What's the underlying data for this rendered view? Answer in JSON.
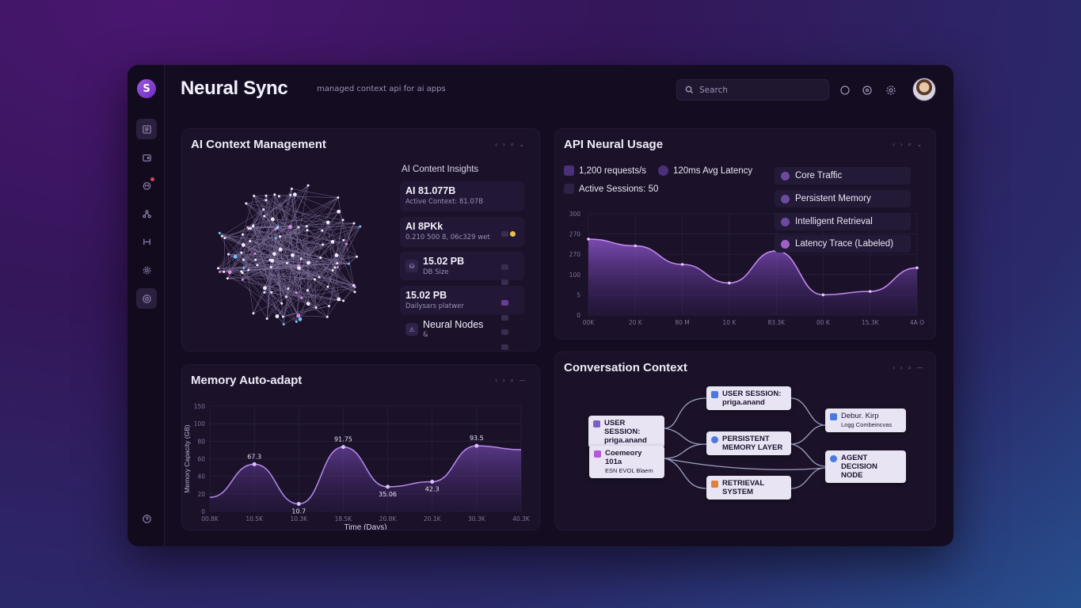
{
  "app": {
    "title": "Neural Sync",
    "subtitle": "managed context api for ai apps",
    "logo_letter": "S"
  },
  "header": {
    "search_placeholder": "Search"
  },
  "sidebar": {
    "items": [
      "doc-icon",
      "wallet-icon",
      "bot-icon",
      "network-icon",
      "flow-icon",
      "gear-icon",
      "target-icon"
    ],
    "footer_icon": "help-icon"
  },
  "context_panel": {
    "title": "AI Context Management",
    "controls": "‹ › ⌕ ⌄",
    "insights_title": "AI Content Insights",
    "cards": [
      {
        "value": "AI 81.077B",
        "sub": "Active Context: 81.07B"
      },
      {
        "value": "AI 8PKk",
        "sub": "0.210 500 8, 06c329 wet"
      },
      {
        "value": "15.02 PB",
        "sub": "DB Size"
      },
      {
        "value": "15.02 PB",
        "sub": "Dailysars platwer"
      },
      {
        "value": "Neural Nodes",
        "sub": "&"
      }
    ]
  },
  "usage_panel": {
    "title": "API Neural Usage",
    "controls": "‹ › ⌕ ⌄",
    "stats": [
      {
        "label": "1,200 requests/s"
      },
      {
        "label": "120ms Avg Latency"
      },
      {
        "label": "Active Sessions: 50"
      }
    ],
    "legend": [
      {
        "label": "Core Traffic",
        "color": "#6c4aa0"
      },
      {
        "label": "Persistent Memory",
        "color": "#6c4aa0"
      },
      {
        "label": "Intelligent Retrieval",
        "color": "#6c4aa0"
      },
      {
        "label": "Latency Trace (Labeled)",
        "color": "#a060c8"
      }
    ],
    "y_ticks": [
      "300",
      "270",
      "270",
      "100",
      "5",
      "0"
    ],
    "x_ticks": [
      "00K",
      "20 K",
      "80 M",
      "10 K",
      "83.3K",
      "00 K",
      "15.3K",
      "4A O"
    ]
  },
  "memory_panel": {
    "title": "Memory Auto-adapt",
    "controls": "‹ › ⌕ —",
    "ylabel": "Memory Capacity (GB)",
    "xlabel": "Time (Days)",
    "y_ticks": [
      "150",
      "100",
      "80",
      "60",
      "40",
      "20",
      "0"
    ],
    "x_ticks": [
      "00.8K",
      "10.5K",
      "10.3K",
      "18.5K",
      "20.8K",
      "20.1K",
      "30.3K",
      "40.3K"
    ]
  },
  "conversation_panel": {
    "title": "Conversation Context",
    "controls": "‹ › ⌕ —",
    "nodes": [
      {
        "line1": "USER SESSION:",
        "line2": "priga.anand",
        "color": "#7b5fc2"
      },
      {
        "line1": "Coemeory 101a",
        "line2": "ESN EVOL Blaem",
        "color": "#b45ad8"
      },
      {
        "line1": "USER SESSION:",
        "line2": "priga.anand",
        "color": "#4a7ae0"
      },
      {
        "line1": "PERSISTENT",
        "line2": "MEMORY LAYER",
        "color": "#4a7ae0"
      },
      {
        "line1": "RETRIEVAL",
        "line2": "SYSTEM",
        "color": "#e0803a"
      },
      {
        "line1": "Debur. Kirp",
        "line2": "Logg Combeincvas",
        "color": "#4a7ae0"
      },
      {
        "line1": "AGENT DECISION",
        "line2": "NODE",
        "color": "#4a7ae0"
      }
    ]
  },
  "chart_data": [
    {
      "type": "area",
      "title": "API Neural Usage",
      "x": [
        "00K",
        "20 K",
        "80 M",
        "10 K",
        "83.3K",
        "00 K",
        "15.3K",
        "4A O"
      ],
      "series": [
        {
          "name": "Latency Trace (Labeled)",
          "values": [
            225,
            205,
            150,
            95,
            190,
            60,
            70,
            140
          ]
        }
      ],
      "ylim": [
        0,
        300
      ],
      "legend": "top-right"
    },
    {
      "type": "line",
      "title": "Memory Auto-adapt",
      "xlabel": "Time (Days)",
      "ylabel": "Memory Capacity (GB)",
      "x": [
        "00.8K",
        "10.5K",
        "10.3K",
        "18.5K",
        "20.8K",
        "20.1K",
        "30.3K",
        "40.3K"
      ],
      "series": [
        {
          "values": [
            20,
            67.3,
            10.7,
            91.75,
            35.06,
            42.3,
            93.5,
            88
          ]
        }
      ],
      "labels": [
        "67.3",
        "10.7",
        "91.75",
        "35.06",
        "42.3",
        "93.5"
      ],
      "ylim": [
        0,
        150
      ]
    }
  ]
}
